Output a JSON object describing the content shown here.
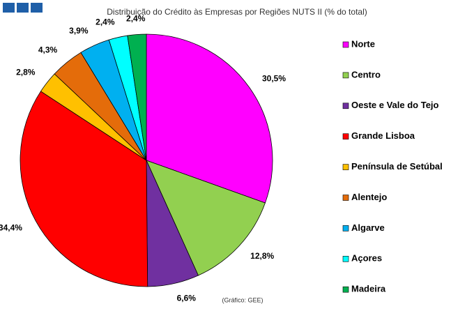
{
  "chart_data": {
    "type": "pie",
    "title": "Distribuição do Crédito às Empresas por Regiões NUTS II (% do total)",
    "categories": [
      "Norte",
      "Centro",
      "Oeste e Vale do Tejo",
      "Grande Lisboa",
      "Península de Setúbal",
      "Alentejo",
      "Algarve",
      "Açores",
      "Madeira"
    ],
    "values": [
      30.5,
      12.8,
      6.6,
      34.4,
      2.8,
      4.3,
      3.9,
      2.4,
      2.4
    ],
    "value_labels": [
      "30,5%",
      "12,8%",
      "6,6%",
      "34,4%",
      "2,8%",
      "4,3%",
      "3,9%",
      "2,4%",
      "2,4%"
    ],
    "colors": [
      "#ff00ff",
      "#92d050",
      "#7030a0",
      "#ff0000",
      "#ffc000",
      "#e46c0a",
      "#00b0f0",
      "#00ffff",
      "#00b050"
    ],
    "legend": "right",
    "source": "(Gráfico: GEE)"
  }
}
